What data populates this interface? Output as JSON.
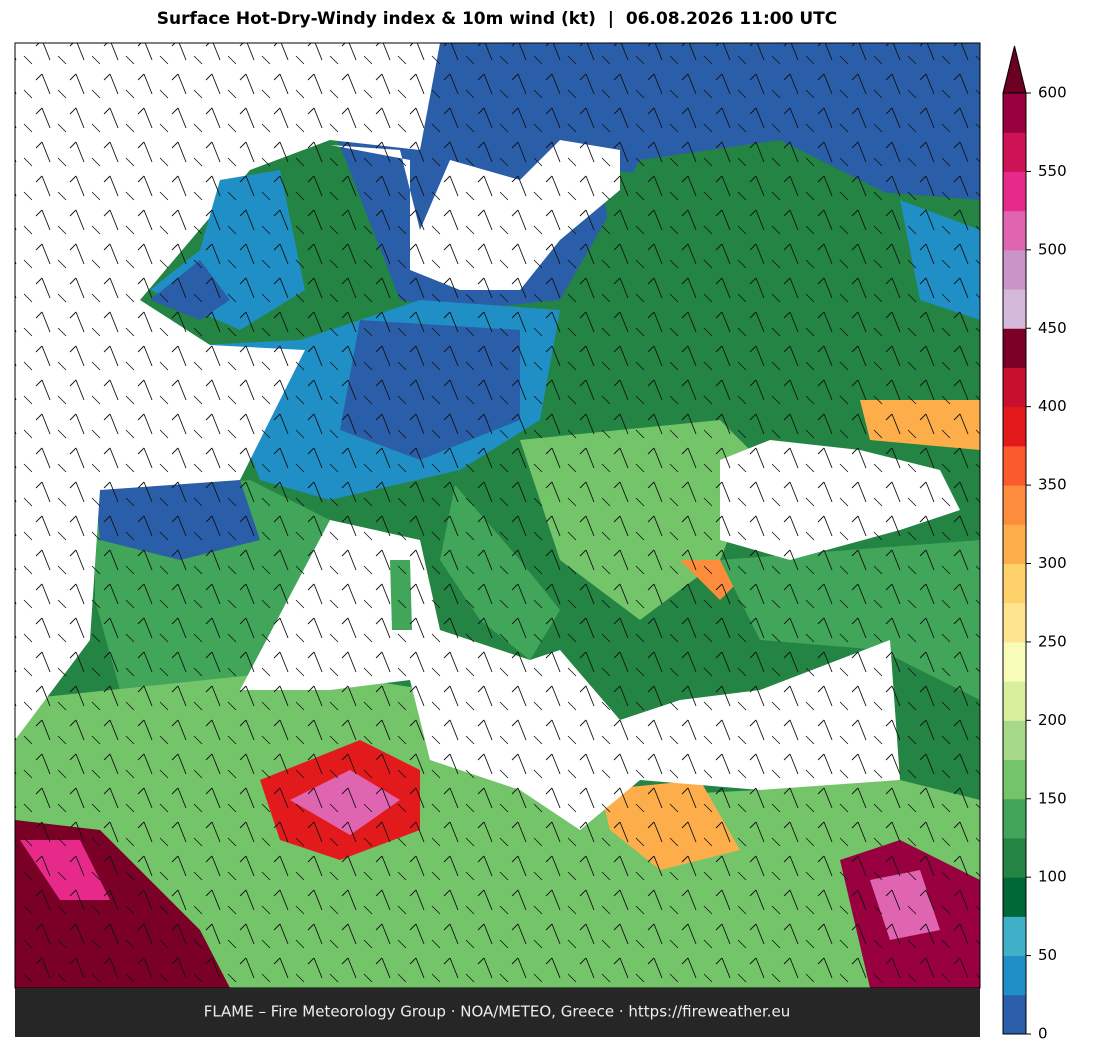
{
  "title": "Surface Hot-Dry-Windy index & 10m wind (kt)  |  06.08.2026 11:00 UTC",
  "footer": "FLAME – Fire Meteorology Group · NOA/METEO, Greece · https://fireweather.eu",
  "colorbar": {
    "lim": [
      0,
      600
    ],
    "ticks": [
      0,
      50,
      100,
      150,
      200,
      250,
      300,
      350,
      400,
      450,
      500,
      550,
      600
    ],
    "colors": [
      "#2b5ea9",
      "#1f8fc6",
      "#40b0c8",
      "#006837",
      "#238443",
      "#41a55a",
      "#74c46a",
      "#a6d98a",
      "#d9ef9b",
      "#f7fcb9",
      "#fee391",
      "#fed16a",
      "#fdae4b",
      "#fd8d3c",
      "#fb5a2d",
      "#e31a1c",
      "#c8102e",
      "#7a0026",
      "#d4b9da",
      "#c994c7",
      "#df65b0",
      "#e7298a",
      "#ce1256",
      "#98003f"
    ],
    "extend": "max",
    "extend_color": "#6b0020"
  }
}
